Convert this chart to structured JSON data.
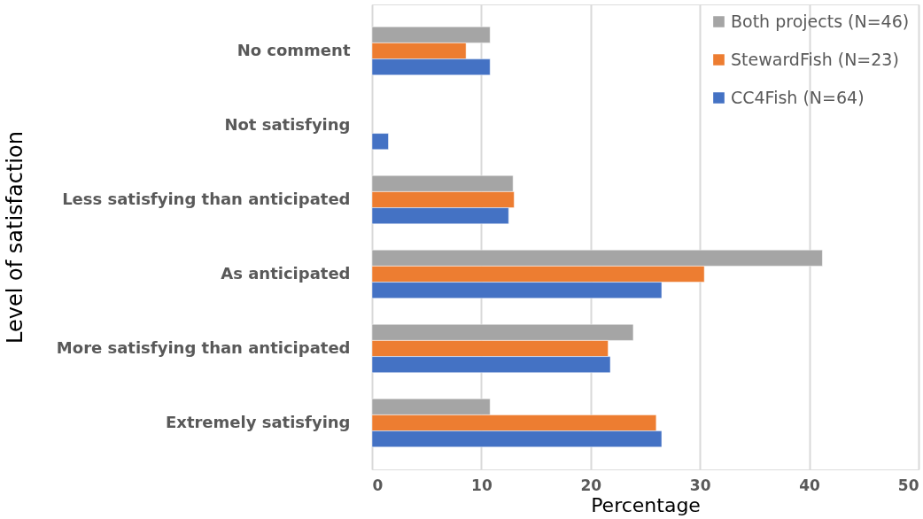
{
  "chart_data": {
    "type": "bar",
    "orientation": "horizontal",
    "xlabel": "Percentage",
    "ylabel": "Level of satisfaction",
    "categories": [
      "No comment",
      "Not satisfying",
      "Less satisfying than anticipated",
      "As anticipated",
      "More satisfying than anticipated",
      "Extremely satisfying"
    ],
    "series": [
      {
        "name": "Both projects (N=46)",
        "color": "#a5a5a5",
        "values": [
          10.8,
          null,
          12.9,
          41.2,
          23.9,
          10.8
        ]
      },
      {
        "name": "StewardFish (N=23)",
        "color": "#ed7d31",
        "values": [
          8.6,
          null,
          13.0,
          30.4,
          21.6,
          26.0
        ]
      },
      {
        "name": "CC4Fish (N=64)",
        "color": "#4472c4",
        "values": [
          10.8,
          1.5,
          12.5,
          26.5,
          21.8,
          26.5
        ]
      }
    ],
    "xlim": [
      0,
      50
    ],
    "xticks": [
      0,
      10,
      20,
      30,
      40,
      50
    ],
    "grid": "x",
    "legend": "top right"
  }
}
